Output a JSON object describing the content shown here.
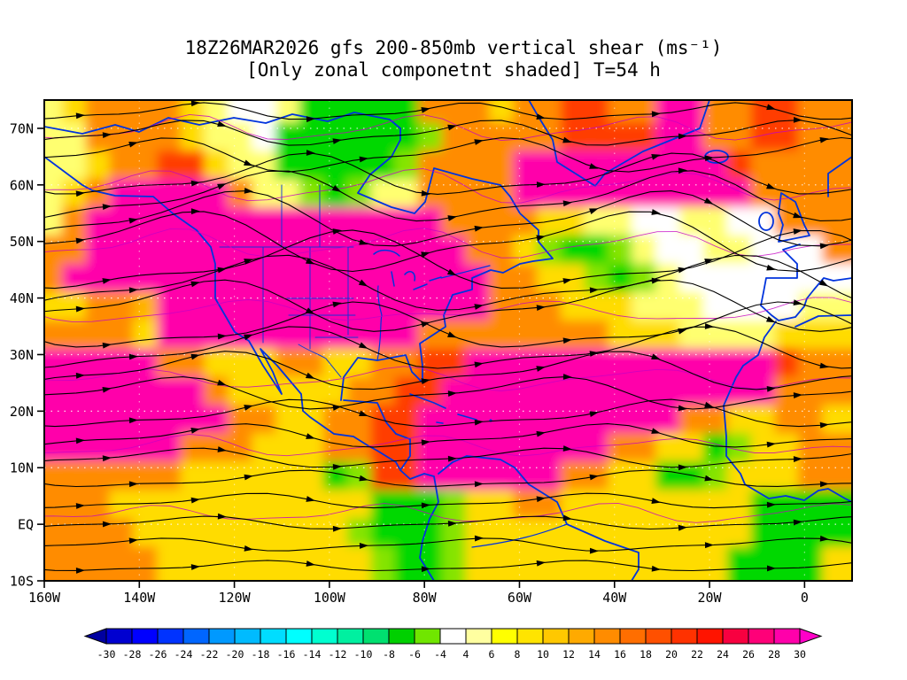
{
  "title": {
    "line1": "18Z26MAR2026 gfs 200-850mb vertical shear (ms⁻¹)",
    "line2": "[Only zonal componetnt shaded] T=54 h"
  },
  "axes": {
    "y_tick_labels": [
      "70N",
      "60N",
      "50N",
      "40N",
      "30N",
      "20N",
      "10N",
      "EQ",
      "10S"
    ],
    "x_tick_labels": [
      "160W",
      "140W",
      "120W",
      "100W",
      "80W",
      "60W",
      "40W",
      "20W",
      "0"
    ]
  },
  "colorbar": {
    "tick_labels": [
      "-30",
      "-28",
      "-26",
      "-24",
      "-22",
      "-20",
      "-18",
      "-16",
      "-14",
      "-12",
      "-10",
      "-8",
      "-6",
      "-4",
      "4",
      "6",
      "8",
      "10",
      "12",
      "14",
      "16",
      "18",
      "20",
      "22",
      "24",
      "26",
      "28",
      "30"
    ],
    "cell_colors": [
      "#0000d0",
      "#0000ff",
      "#0033ff",
      "#0066ff",
      "#0099ff",
      "#00bbff",
      "#00ddff",
      "#00ffff",
      "#00ffd0",
      "#00f0a0",
      "#00e070",
      "#00d000",
      "#70e600",
      "#ffffff",
      "#ffffa0",
      "#ffff00",
      "#ffe400",
      "#ffc800",
      "#ffaa00",
      "#ff8c00",
      "#ff6e00",
      "#ff5000",
      "#ff3200",
      "#ff1400",
      "#f80040",
      "#ff0078",
      "#ff00aa"
    ],
    "left_arrow_color": "#0000a0",
    "right_arrow_color": "#ff00c8"
  },
  "chart_data": {
    "type": "heatmap",
    "field": "200-850mb vertical wind shear, zonal component, with streamline overlay",
    "units": "m/s",
    "model_run": "18Z 26 MAR 2026 GFS",
    "forecast_hour": 54,
    "lon_range": [
      -160,
      10
    ],
    "lat_range": [
      -10,
      75
    ],
    "x_tick_lons": [
      -160,
      -140,
      -120,
      -100,
      -80,
      -60,
      -40,
      -20,
      0
    ],
    "y_tick_lats": [
      70,
      60,
      50,
      40,
      30,
      20,
      10,
      0,
      -10
    ],
    "shade_levels": [
      -30,
      -28,
      -26,
      -24,
      -22,
      -20,
      -18,
      -16,
      -14,
      -12,
      -10,
      -8,
      -6,
      -4,
      4,
      6,
      8,
      10,
      12,
      14,
      16,
      18,
      20,
      22,
      24,
      26,
      28,
      30
    ],
    "palette": {
      "M": "#ff00aa",
      "R": "#ff3c00",
      "O": "#ff8c00",
      "o": "#ffb400",
      "Y": "#ffdc00",
      "y": "#ffff70",
      "W": "#ffffff",
      "G": "#00d800",
      "g": "#86e400"
    },
    "grid_note": "rows are 5-degree latitude bands from 75N down to 10S; columns are 5-degree longitude steps from 160W to 10E; letters index palette (approximate shaded zonal shear field)",
    "grid_rows": [
      "yYOOOOYyWWyGGGGGOOOYOORROOMMOORROO",
      "yyOOOOYyyWGGGGGGgOOOOORRRRMMOORROO",
      "yyYOORRYyyGGGGGgOOOOMMMMMMMMMROOOO",
      "yYOMMMMMOyygGgyyOOOOMMMMMMMMMMOOOO",
      "yOMMMMMMMMMMMMMMMOOOOYYyyWWyyWWOOO",
      "OOMMMMMMMMMMMMMMMMOOYgGGgyWWyyWWWO",
      "OMMMMMMMMMMMMMMMMMMOOYYgGgyWWWWWWW",
      "YYOOoMMMMMMMMMMMMMMOOOYYYyyyWWWWyy",
      "OOOOYMMMMMMMMMMMOOOOOOOOYYYyyyyYYY",
      "MMMMMOOYYYOOYYOORRMMMMMMMMMMMMMROO",
      "MMMMMMMOYYYYYOORRMMMMMMMMMMMMMMOOO",
      "MMMMMMMMOOYYOORRMMMMMMMMMMMOOYYOOY",
      "MMMMMMOOOYYYOORRMMMMMMMMOOYYGgYYOO",
      "OOOOOOYYYYYYGgRRMMMMMMOOYYGGgYYYOO",
      "OOOYYYYYYYYYYYGGGgYYOOYYYYYYYYGGGG",
      "OOOOYYYYYYYYYgGGGgYYYYYYYYYYYYGGGG",
      "OOOOOYYYYYYYYYgGGgYYYYYYYYYYYGGGGY"
    ],
    "streamlines": {
      "color": "#000000",
      "rows": [
        [
          0.025,
          8,
          300,
          1.2
        ],
        [
          0.07,
          12,
          340,
          2.0
        ],
        [
          0.115,
          16,
          380,
          2.8
        ],
        [
          0.16,
          20,
          420,
          0.5
        ],
        [
          0.205,
          24,
          460,
          1.4
        ],
        [
          0.25,
          26,
          480,
          2.2
        ],
        [
          0.295,
          28,
          500,
          3.0
        ],
        [
          0.34,
          28,
          520,
          0.8
        ],
        [
          0.385,
          26,
          520,
          1.8
        ],
        [
          0.43,
          24,
          500,
          2.6
        ],
        [
          0.475,
          22,
          480,
          0.3
        ],
        [
          0.52,
          20,
          460,
          1.1
        ],
        [
          0.565,
          18,
          440,
          2.1
        ],
        [
          0.61,
          15,
          430,
          2.9
        ],
        [
          0.655,
          13,
          420,
          0.7
        ],
        [
          0.7,
          11,
          410,
          1.6
        ],
        [
          0.745,
          9,
          400,
          2.4
        ],
        [
          0.79,
          8,
          390,
          0.2
        ],
        [
          0.835,
          7,
          380,
          1.0
        ],
        [
          0.88,
          6,
          370,
          1.9
        ],
        [
          0.925,
          6,
          360,
          2.7
        ],
        [
          0.97,
          5,
          350,
          0.4
        ]
      ]
    },
    "contours": {
      "color": "#c400c4",
      "rows": [
        [
          0.06,
          10,
          260,
          0.9
        ],
        [
          0.18,
          14,
          300,
          2.5
        ],
        [
          0.3,
          12,
          280,
          1.7
        ],
        [
          0.44,
          10,
          320,
          0.2
        ],
        [
          0.58,
          9,
          300,
          2.9
        ],
        [
          0.72,
          8,
          280,
          1.3
        ],
        [
          0.86,
          7,
          260,
          2.2
        ]
      ]
    },
    "coastline_color": "#0033dd"
  }
}
